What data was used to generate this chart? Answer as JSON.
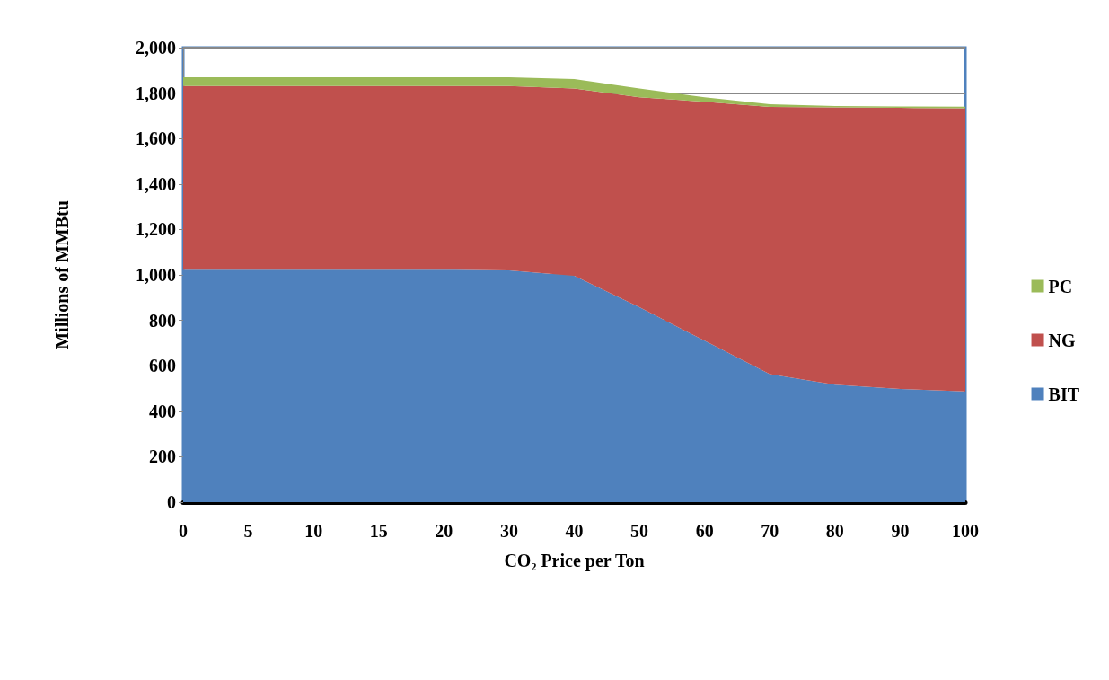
{
  "chart_data": {
    "type": "area",
    "stacked": true,
    "xlabel": "CO₂ Price per Ton",
    "ylabel": "Millions of MMBtu",
    "categories": [
      "0",
      "5",
      "10",
      "15",
      "20",
      "30",
      "40",
      "50",
      "60",
      "70",
      "80",
      "90",
      "100"
    ],
    "series": [
      {
        "name": "BIT",
        "color": "#4f81bd",
        "values": [
          1023,
          1023,
          1023,
          1023,
          1023,
          1020,
          996,
          858,
          710,
          563,
          517,
          498,
          487
        ]
      },
      {
        "name": "NG",
        "color": "#c0504d",
        "values": [
          808,
          808,
          808,
          808,
          808,
          811,
          824,
          924,
          1052,
          1176,
          1220,
          1237,
          1246
        ]
      },
      {
        "name": "PC",
        "color": "#9bbb59",
        "values": [
          39,
          39,
          39,
          39,
          39,
          39,
          42,
          38,
          20,
          12,
          6,
          6,
          7
        ]
      }
    ],
    "ylim": [
      0,
      2000
    ],
    "yticks": [
      0,
      200,
      400,
      600,
      800,
      {
        "value": 1000,
        "label": "1,000"
      },
      {
        "value": 1200,
        "label": "1,200"
      },
      {
        "value": 1400,
        "label": "1,400"
      },
      {
        "value": 1600,
        "label": "1,600"
      },
      {
        "value": 1800,
        "label": "1,800"
      },
      {
        "value": 2000,
        "label": "2,000"
      }
    ],
    "grid": "y",
    "legend": "right"
  }
}
